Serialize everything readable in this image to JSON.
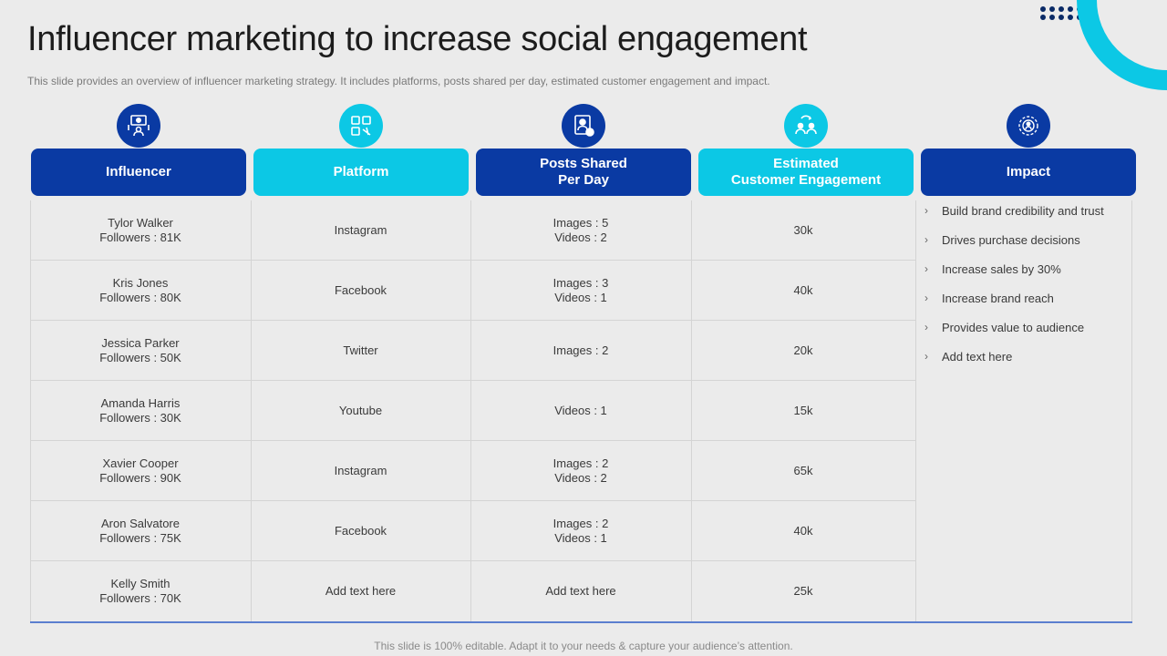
{
  "title": "Influencer marketing to increase social engagement",
  "subtitle": "This slide provides an overview of influencer marketing strategy. It includes platforms, posts shared per day, estimated customer engagement and impact.",
  "colors": {
    "dark": "#0a3aa3",
    "light": "#0cc8e5",
    "background": "#ebebeb"
  },
  "columns": [
    {
      "label": "Influencer",
      "icon": "influencer-icon"
    },
    {
      "label": "Platform",
      "icon": "platform-icon"
    },
    {
      "label": "Posts Shared\nPer Day",
      "icon": "posts-icon"
    },
    {
      "label": "Estimated\nCustomer Engagement",
      "icon": "engagement-icon"
    },
    {
      "label": "Impact",
      "icon": "impact-icon"
    }
  ],
  "rows": [
    {
      "influencer": "Tylor Walker\nFollowers  : 81K",
      "platform": "Instagram",
      "posts": "Images  : 5\nVideos : 2",
      "engagement": "30k"
    },
    {
      "influencer": "Kris Jones\nFollowers  : 80K",
      "platform": "Facebook",
      "posts": "Images  : 3\nVideos : 1",
      "engagement": "40k"
    },
    {
      "influencer": "Jessica Parker\nFollowers  : 50K",
      "platform": "Twitter",
      "posts": "Images  : 2",
      "engagement": "20k"
    },
    {
      "influencer": "Amanda Harris\nFollowers  : 30K",
      "platform": "Youtube",
      "posts": "Videos : 1",
      "engagement": "15k"
    },
    {
      "influencer": "Xavier  Cooper\nFollowers  : 90K",
      "platform": "Instagram",
      "posts": "Images  : 2\nVideos : 2",
      "engagement": "65k"
    },
    {
      "influencer": "Aron Salvatore\nFollowers  : 75K",
      "platform": "Facebook",
      "posts": "Images  : 2\nVideos : 1",
      "engagement": "40k"
    },
    {
      "influencer": "Kelly Smith\nFollowers  : 70K",
      "platform": "Add text here",
      "posts": "Add text here",
      "engagement": "25k"
    }
  ],
  "impact": [
    "Build brand credibility and trust",
    "Drives purchase decisions",
    "Increase sales by 30%",
    "Increase brand reach",
    "Provides value  to audience",
    "Add text here"
  ],
  "footer": "This slide is 100% editable. Adapt it to your needs & capture your audience’s attention."
}
